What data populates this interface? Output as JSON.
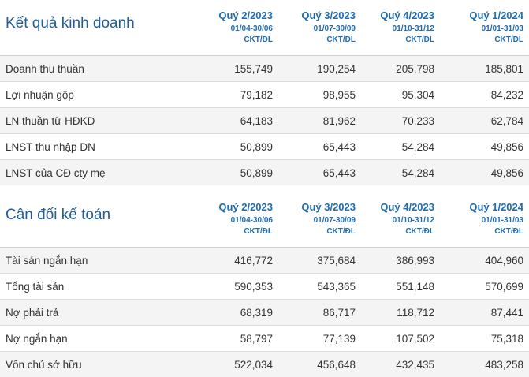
{
  "sections": [
    {
      "title": "Kết quả kinh doanh",
      "periods": [
        {
          "quarter": "Quý 2/2023",
          "dates": "01/04-30/06",
          "status": "CKT/ĐL"
        },
        {
          "quarter": "Quý 3/2023",
          "dates": "01/07-30/09",
          "status": "CKT/ĐL"
        },
        {
          "quarter": "Quý 4/2023",
          "dates": "01/10-31/12",
          "status": "CKT/ĐL"
        },
        {
          "quarter": "Quý 1/2024",
          "dates": "01/01-31/03",
          "status": "CKT/ĐL"
        }
      ],
      "rows": [
        {
          "label": "Doanh thu thuần",
          "values": [
            "155,749",
            "190,254",
            "205,798",
            "185,801"
          ]
        },
        {
          "label": "Lợi nhuận gộp",
          "values": [
            "79,182",
            "98,955",
            "95,304",
            "84,232"
          ]
        },
        {
          "label": "LN thuần từ HĐKD",
          "values": [
            "64,183",
            "81,962",
            "70,233",
            "62,784"
          ]
        },
        {
          "label": "LNST thu nhập DN",
          "values": [
            "50,899",
            "65,443",
            "54,284",
            "49,856"
          ]
        },
        {
          "label": "LNST của CĐ cty mẹ",
          "values": [
            "50,899",
            "65,443",
            "54,284",
            "49,856"
          ]
        }
      ]
    },
    {
      "title": "Cân đối kế toán",
      "periods": [
        {
          "quarter": "Quý 2/2023",
          "dates": "01/04-30/06",
          "status": "CKT/ĐL"
        },
        {
          "quarter": "Quý 3/2023",
          "dates": "01/07-30/09",
          "status": "CKT/ĐL"
        },
        {
          "quarter": "Quý 4/2023",
          "dates": "01/10-31/12",
          "status": "CKT/ĐL"
        },
        {
          "quarter": "Quý 1/2024",
          "dates": "01/01-31/03",
          "status": "CKT/ĐL"
        }
      ],
      "rows": [
        {
          "label": "Tài sản ngắn hạn",
          "values": [
            "416,772",
            "375,684",
            "386,993",
            "404,960"
          ]
        },
        {
          "label": "Tổng tài sản",
          "values": [
            "590,353",
            "543,365",
            "551,148",
            "570,699"
          ]
        },
        {
          "label": "Nợ phải trả",
          "values": [
            "68,319",
            "86,717",
            "118,712",
            "87,441"
          ]
        },
        {
          "label": "Nợ ngắn hạn",
          "values": [
            "58,797",
            "77,139",
            "107,502",
            "75,318"
          ]
        },
        {
          "label": "Vốn chủ sở hữu",
          "values": [
            "522,034",
            "456,648",
            "432,435",
            "483,258"
          ]
        }
      ]
    }
  ]
}
